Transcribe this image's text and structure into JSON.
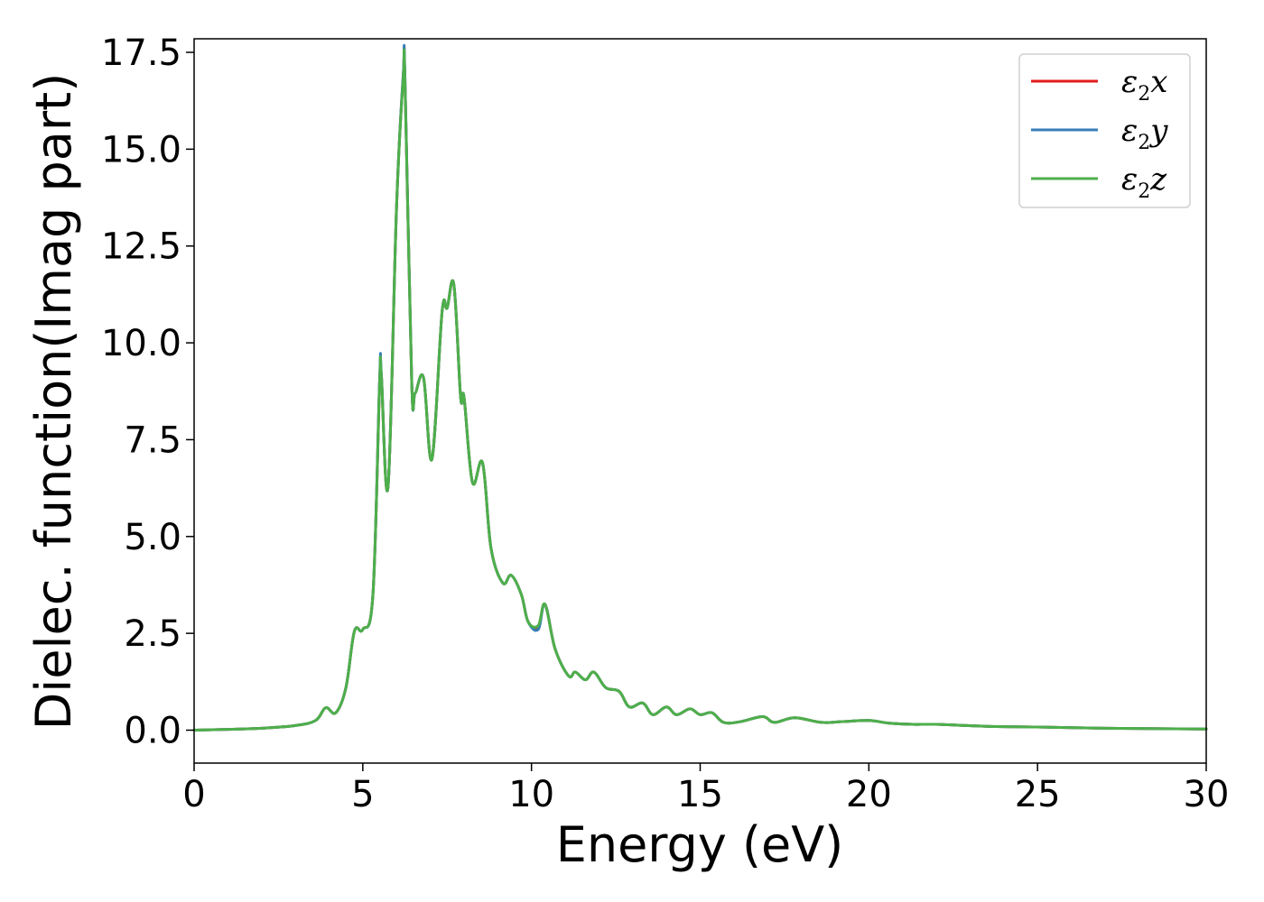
{
  "chart_data": {
    "type": "line",
    "xlabel": "Energy (eV)",
    "ylabel": "Dielec. function(Imag part)",
    "xlim": [
      0,
      30
    ],
    "ylim": [
      -0.85,
      17.85
    ],
    "x_ticks": [
      0,
      5,
      10,
      15,
      20,
      25,
      30
    ],
    "y_ticks": [
      0.0,
      2.5,
      5.0,
      7.5,
      10.0,
      12.5,
      15.0,
      17.5
    ],
    "x_tick_labels": [
      "0",
      "5",
      "10",
      "15",
      "20",
      "25",
      "30"
    ],
    "y_tick_labels": [
      "0.0",
      "2.5",
      "5.0",
      "7.5",
      "10.0",
      "12.5",
      "15.0",
      "17.5"
    ],
    "grid": false,
    "legend_position": "top-right",
    "x": [
      0,
      1,
      2,
      3,
      3.6,
      3.9,
      4.2,
      4.5,
      4.75,
      5.0,
      5.3,
      5.5,
      5.55,
      5.75,
      6.0,
      6.2,
      6.25,
      6.45,
      6.55,
      6.8,
      7.05,
      7.35,
      7.5,
      7.7,
      7.9,
      8.0,
      8.25,
      8.55,
      8.8,
      9.15,
      9.4,
      9.7,
      9.9,
      10.2,
      10.4,
      10.7,
      11.1,
      11.3,
      11.6,
      11.85,
      12.2,
      12.6,
      12.9,
      13.3,
      13.6,
      14.0,
      14.3,
      14.7,
      15.0,
      15.35,
      15.7,
      16.2,
      16.85,
      17.2,
      17.8,
      18.6,
      19.2,
      20.0,
      20.6,
      21.3,
      22.0,
      23.5,
      25.0,
      27.0,
      30.0
    ],
    "series": [
      {
        "name": "ε₂x",
        "color": "#e41a1c",
        "values": [
          0.0,
          0.02,
          0.05,
          0.12,
          0.25,
          0.58,
          0.45,
          1.1,
          2.55,
          2.6,
          3.5,
          9.0,
          9.15,
          6.3,
          13.5,
          16.9,
          16.8,
          9.0,
          8.7,
          9.1,
          7.0,
          10.8,
          10.9,
          11.5,
          8.6,
          8.6,
          6.4,
          6.9,
          4.7,
          3.8,
          4.0,
          3.5,
          2.8,
          2.65,
          3.25,
          2.1,
          1.4,
          1.5,
          1.3,
          1.5,
          1.1,
          1.0,
          0.6,
          0.7,
          0.4,
          0.6,
          0.4,
          0.55,
          0.4,
          0.45,
          0.2,
          0.22,
          0.35,
          0.2,
          0.32,
          0.2,
          0.22,
          0.25,
          0.18,
          0.15,
          0.15,
          0.1,
          0.08,
          0.05,
          0.03
        ]
      },
      {
        "name": "ε₂y",
        "color": "#377eb8",
        "values": [
          0.0,
          0.02,
          0.05,
          0.12,
          0.25,
          0.58,
          0.45,
          1.1,
          2.55,
          2.6,
          3.5,
          9.1,
          9.2,
          6.3,
          13.5,
          16.95,
          16.85,
          9.0,
          8.7,
          9.1,
          7.0,
          10.8,
          10.9,
          11.5,
          8.6,
          8.6,
          6.4,
          6.9,
          4.7,
          3.8,
          4.0,
          3.5,
          2.8,
          2.6,
          3.25,
          2.1,
          1.4,
          1.5,
          1.3,
          1.5,
          1.1,
          1.0,
          0.6,
          0.7,
          0.4,
          0.6,
          0.4,
          0.55,
          0.4,
          0.45,
          0.2,
          0.22,
          0.35,
          0.2,
          0.32,
          0.2,
          0.22,
          0.25,
          0.18,
          0.15,
          0.15,
          0.1,
          0.08,
          0.05,
          0.03
        ]
      },
      {
        "name": "ε₂z",
        "color": "#4daf4a",
        "values": [
          0.0,
          0.02,
          0.05,
          0.12,
          0.25,
          0.58,
          0.45,
          1.1,
          2.55,
          2.6,
          3.5,
          9.0,
          9.15,
          6.3,
          13.5,
          16.85,
          16.75,
          9.0,
          8.7,
          9.1,
          7.0,
          10.8,
          10.9,
          11.5,
          8.6,
          8.6,
          6.4,
          6.9,
          4.7,
          3.8,
          4.0,
          3.5,
          2.8,
          2.7,
          3.25,
          2.1,
          1.4,
          1.5,
          1.3,
          1.5,
          1.1,
          1.0,
          0.6,
          0.7,
          0.4,
          0.6,
          0.4,
          0.55,
          0.4,
          0.45,
          0.2,
          0.22,
          0.35,
          0.2,
          0.32,
          0.2,
          0.22,
          0.25,
          0.18,
          0.15,
          0.15,
          0.1,
          0.08,
          0.05,
          0.03
        ]
      }
    ],
    "legend": [
      {
        "base": "ε",
        "sub": "2",
        "axis": "x"
      },
      {
        "base": "ε",
        "sub": "2",
        "axis": "y"
      },
      {
        "base": "ε",
        "sub": "2",
        "axis": "z"
      }
    ]
  }
}
